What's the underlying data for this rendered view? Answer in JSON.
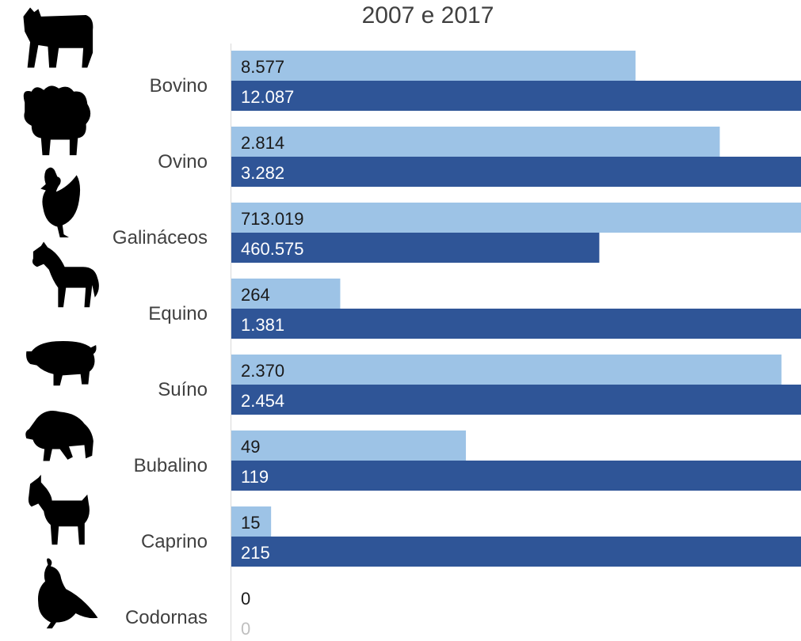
{
  "colors": {
    "series_2007": "#9dc3e6",
    "series_2017": "#2f5597",
    "label_dark": "#1a1a1a",
    "label_light": "#ffffff",
    "icon": "#000000"
  },
  "chart_data": {
    "type": "bar",
    "orientation": "horizontal",
    "title": "2007 e 2017",
    "categories": [
      "Bovino",
      "Ovino",
      "Galináceos",
      "Equino",
      "Suíno",
      "Bubalino",
      "Caprino",
      "Codornas"
    ],
    "icons": [
      "cow-icon",
      "sheep-icon",
      "chicken-icon",
      "horse-icon",
      "pig-icon",
      "buffalo-icon",
      "goat-icon",
      "quail-icon"
    ],
    "series": [
      {
        "values": [
          8577,
          2814,
          713019,
          264,
          2370,
          49,
          15,
          0
        ],
        "labels": [
          "8.577",
          "2.814",
          "713.019",
          "264",
          "2.370",
          "49",
          "15",
          "0"
        ]
      },
      {
        "values": [
          12087,
          3282,
          460575,
          1381,
          2454,
          119,
          215,
          0
        ],
        "labels": [
          "12.087",
          "3.282",
          "460.575",
          "1.381",
          "2.454",
          "119",
          "215",
          "0"
        ]
      }
    ],
    "note": "each category bar lengths are scaled to the category maximum",
    "grid": false,
    "legend": "none"
  }
}
